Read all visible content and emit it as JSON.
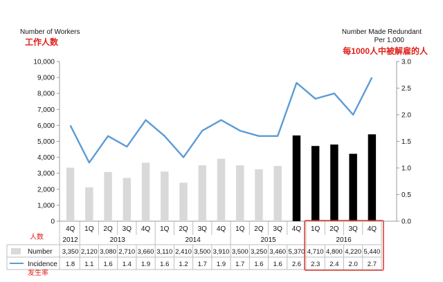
{
  "chart_data": {
    "type": "bar",
    "left_axis_title": "Number of Workers",
    "left_axis_title_cn": "工作人数",
    "right_axis_title_line1": "Number Made Redundant",
    "right_axis_title_line2": "Per 1,000",
    "right_axis_title_cn": "每1000人中被解雇的人",
    "ylim_left": [
      0,
      10000
    ],
    "yticks_left": [
      "0",
      "1,000",
      "2,000",
      "3,000",
      "4,000",
      "5,000",
      "6,000",
      "7,000",
      "8,000",
      "9,000",
      "10,000"
    ],
    "ylim_right": [
      0,
      3.0
    ],
    "yticks_right": [
      "0.0",
      "0.5",
      "1.0",
      "1.5",
      "2.0",
      "2.5",
      "3.0"
    ],
    "categories": [
      "4Q",
      "1Q",
      "2Q",
      "3Q",
      "4Q",
      "1Q",
      "2Q",
      "3Q",
      "4Q",
      "1Q",
      "2Q",
      "3Q",
      "4Q",
      "1Q",
      "2Q",
      "3Q",
      "4Q"
    ],
    "years": [
      "2012",
      "2013",
      "2014",
      "2015",
      "2016"
    ],
    "series": [
      {
        "name": "Number",
        "type": "bar",
        "values": [
          3350,
          2120,
          3080,
          2710,
          3660,
          3110,
          2410,
          3500,
          3910,
          3500,
          3250,
          3460,
          5370,
          4710,
          4800,
          4220,
          5440
        ],
        "labels": [
          "3,350",
          "2,120",
          "3,080",
          "2,710",
          "3,660",
          "3,110",
          "2,410",
          "3,500",
          "3,910",
          "3,500",
          "3,250",
          "3,460",
          "5,370",
          "4,710",
          "4,800",
          "4,220",
          "5,440"
        ]
      },
      {
        "name": "Incidence",
        "type": "line",
        "axis": "right",
        "values": [
          1.8,
          1.1,
          1.6,
          1.4,
          1.9,
          1.6,
          1.2,
          1.7,
          1.9,
          1.7,
          1.6,
          1.6,
          2.6,
          2.3,
          2.4,
          2.0,
          2.7
        ],
        "labels": [
          "1.8",
          "1.1",
          "1.6",
          "1.4",
          "1.9",
          "1.6",
          "1.2",
          "1.7",
          "1.9",
          "1.7",
          "1.6",
          "1.6",
          "2.6",
          "2.3",
          "2.4",
          "2.0",
          "2.7"
        ]
      }
    ],
    "table_label_cn_top": "人数",
    "table_label_cn_bottom": "发生率",
    "colors": {
      "bar_normal": "#d9d9d9",
      "bar_highlight": "#000000",
      "line": "#5b9bd5",
      "highlight_box": "#e03c31",
      "cn_text": "#e0201b"
    },
    "highlighted_from_index": 12,
    "box_from_index": 13,
    "grid": false
  }
}
